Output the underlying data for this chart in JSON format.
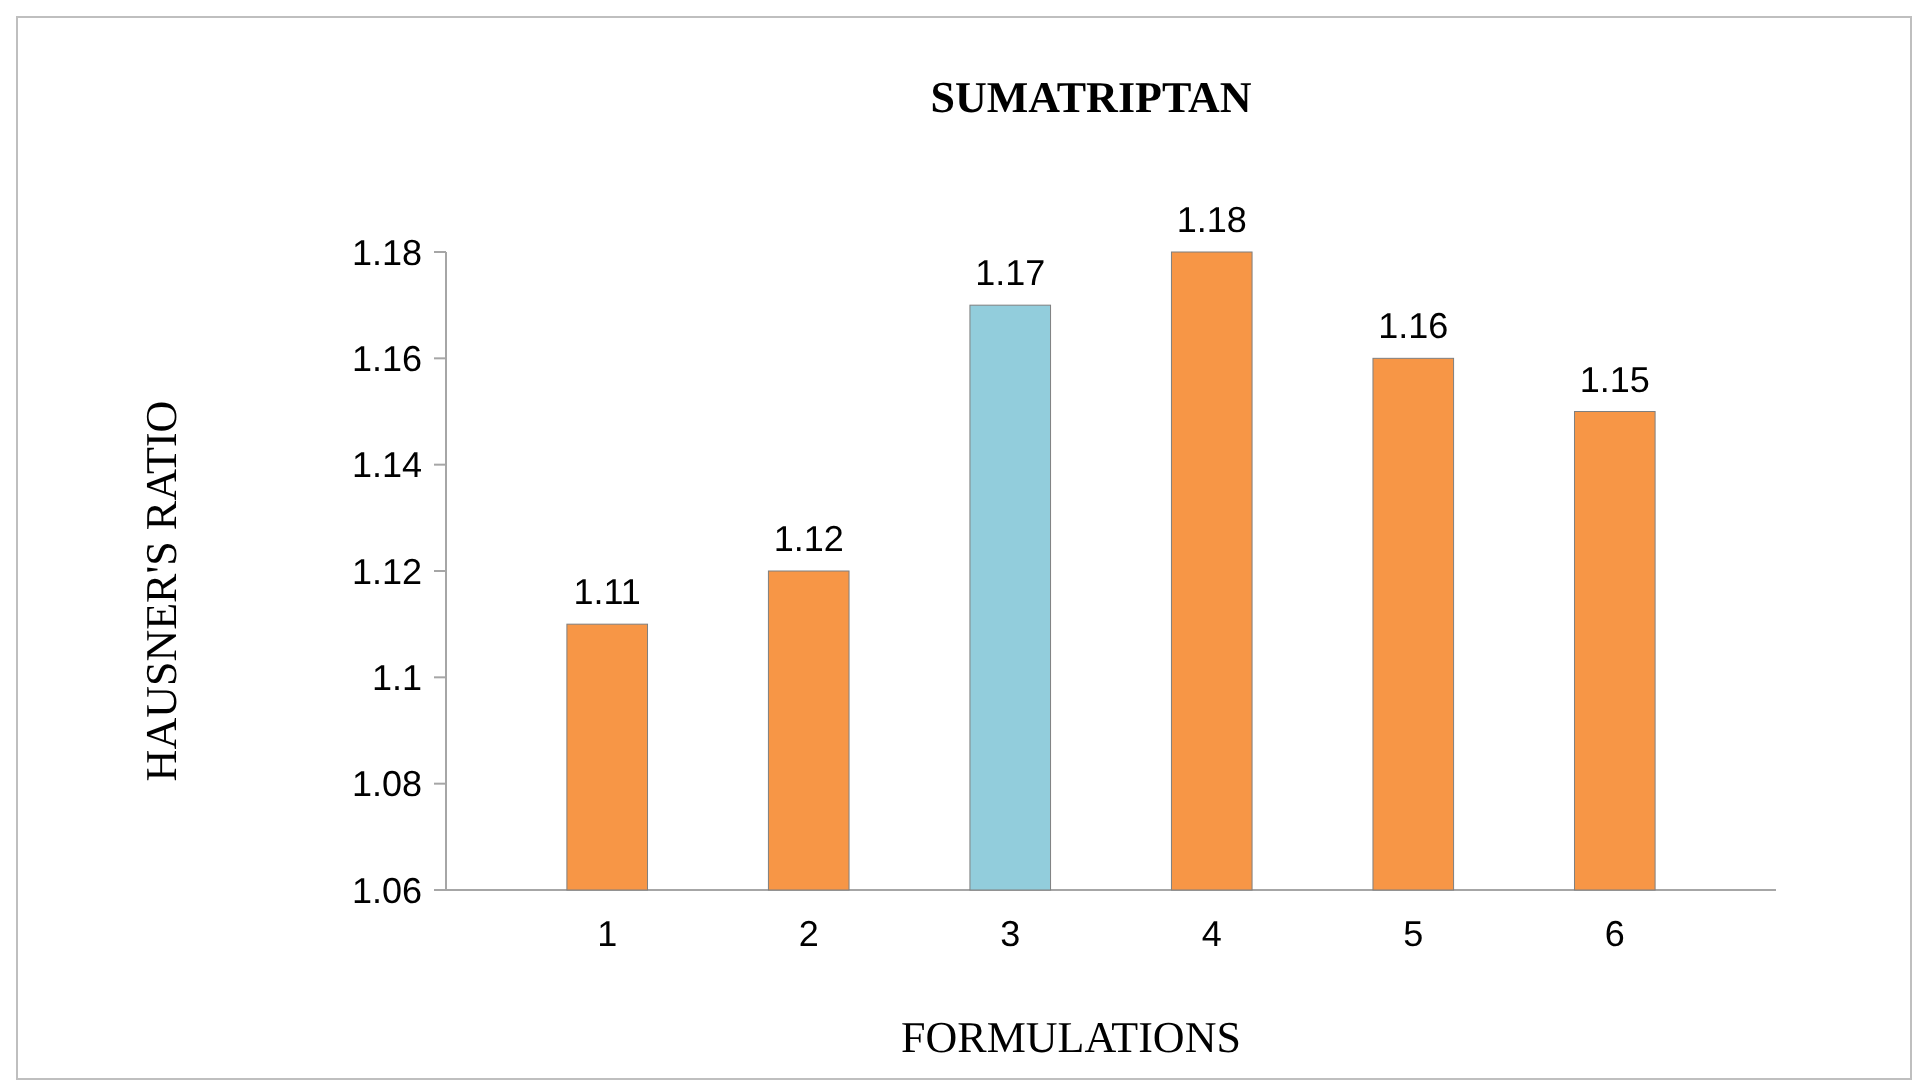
{
  "chart_data": {
    "type": "bar",
    "title": "SUMATRIPTAN",
    "xlabel": "FORMULATIONS",
    "ylabel": "HAUSNER'S RATIO",
    "categories": [
      "1",
      "2",
      "3",
      "4",
      "5",
      "6"
    ],
    "values": [
      1.11,
      1.12,
      1.17,
      1.18,
      1.16,
      1.15
    ],
    "colors": [
      "#f79646",
      "#f79646",
      "#92cddc",
      "#f79646",
      "#f79646",
      "#f79646"
    ],
    "ylim": [
      1.06,
      1.18
    ],
    "yticks": [
      1.06,
      1.08,
      1.1,
      1.12,
      1.14,
      1.16,
      1.18
    ],
    "data_labels": true
  }
}
